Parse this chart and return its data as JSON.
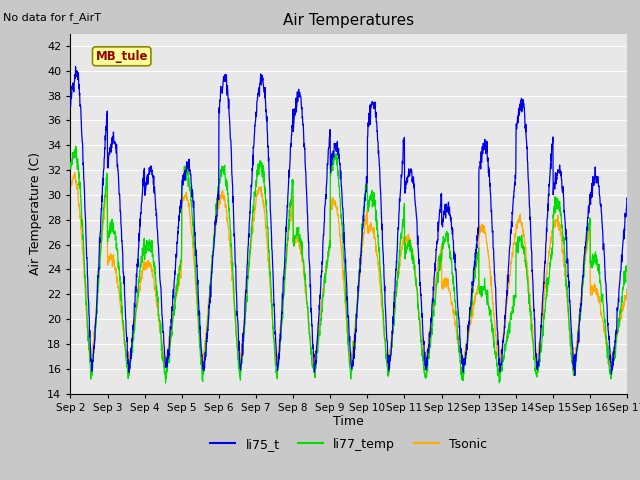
{
  "title": "Air Temperatures",
  "ylabel": "Air Temperature (C)",
  "xlabel": "Time",
  "annotation": "No data for f_AirT",
  "legend_label": "MB_tule",
  "ylim": [
    14,
    43
  ],
  "yticks": [
    14,
    16,
    18,
    20,
    22,
    24,
    26,
    28,
    30,
    32,
    34,
    36,
    38,
    40,
    42
  ],
  "days": 15,
  "series": {
    "li75_t": {
      "color": "#0000ee",
      "label": "li75_t"
    },
    "li77_temp": {
      "color": "#00dd00",
      "label": "li77_temp"
    },
    "Tsonic": {
      "color": "#ffaa00",
      "label": "Tsonic"
    }
  },
  "day_peaks_blue": [
    40.0,
    34.5,
    32.0,
    32.5,
    39.5,
    39.5,
    38.0,
    34.0,
    37.5,
    32.0,
    29.0,
    34.0,
    37.5,
    32.0,
    31.5
  ],
  "day_peaks_green": [
    33.5,
    27.5,
    26.0,
    32.0,
    32.0,
    32.5,
    27.0,
    33.0,
    30.0,
    26.0,
    26.5,
    22.5,
    26.5,
    29.5,
    25.0
  ],
  "day_peaks_orange": [
    31.5,
    25.0,
    24.5,
    30.0,
    30.0,
    30.5,
    26.5,
    29.5,
    27.5,
    26.5,
    23.0,
    27.5,
    28.0,
    28.0,
    22.5
  ],
  "night_min_blue": 16.0,
  "night_min_green": 15.5,
  "night_min_orange": 16.5,
  "bg_color": "#e8e8e8",
  "grid_color": "#ffffff",
  "fig_bg": "#c8c8c8"
}
